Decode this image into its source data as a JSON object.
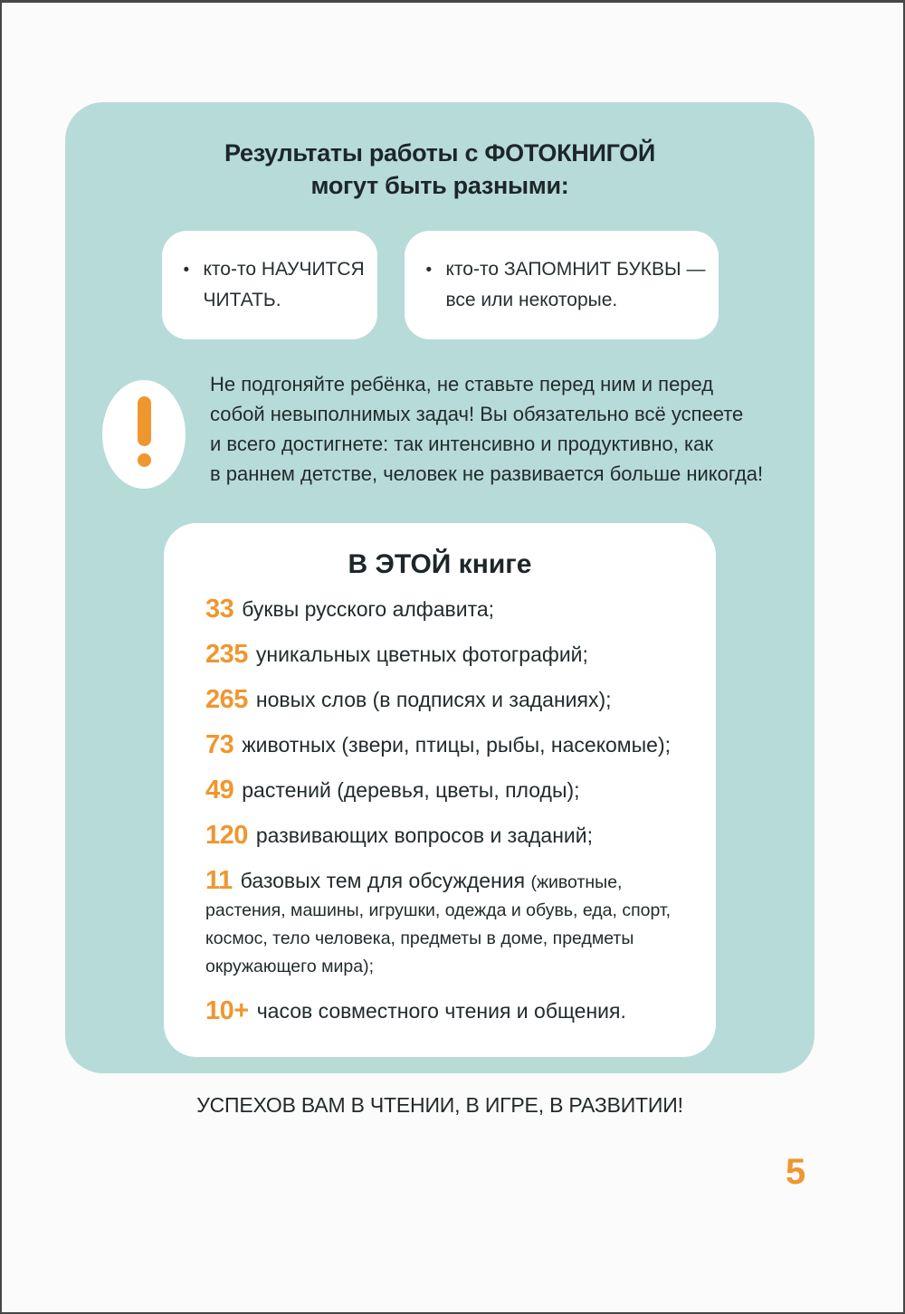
{
  "title": {
    "line1": "Результаты работы с ФОТОКНИГОЙ",
    "line2": "могут быть разными:"
  },
  "result_boxes": [
    {
      "bullet": "•",
      "line1": "кто-то НАУЧИТСЯ",
      "line2": "ЧИТАТЬ."
    },
    {
      "bullet": "•",
      "line1": "кто-то ЗАПОМНИТ БУКВЫ —",
      "line2": "все или некоторые."
    }
  ],
  "note": {
    "icon": "exclamation-icon",
    "lines": [
      "Не подгоняйте ребёнка, не ставьте перед ним и перед",
      "собой невыполнимых задач! Вы обязательно всё успеете",
      "и всего достигнете: так интенсивно и продуктивно, как",
      "в раннем детстве, человек не развивается больше никогда!"
    ]
  },
  "book_box": {
    "heading": "В ЭТОЙ книге",
    "items": [
      {
        "num": "33",
        "text": "буквы русского алфавита;"
      },
      {
        "num": "235",
        "text": "уникальных цветных фотографий;"
      },
      {
        "num": "265",
        "text": "новых слов (в подписях и заданиях);"
      },
      {
        "num": "73",
        "text": "животных (звери, птицы, рыбы, насекомые);"
      },
      {
        "num": "49",
        "text": "растений (деревья, цветы, плоды);"
      },
      {
        "num": "120",
        "text": "развивающих вопросов и заданий;"
      },
      {
        "num": "11",
        "text": "базовых тем для обсуждения ",
        "small": "(животные, растения, машины, игрушки, одежда и обувь, еда, спорт, космос, тело человека, предметы в доме, предметы окружающего мира);"
      },
      {
        "num": "10+",
        "text": "часов совместного чтения и общения."
      }
    ]
  },
  "footer": "УСПЕХОВ ВАМ В ЧТЕНИИ, В ИГРЕ, В РАЗВИТИИ!",
  "page_number": "5",
  "colors": {
    "card_bg": "#b7dbd8",
    "accent_orange": "#f0962f",
    "text_dark": "#20292b",
    "box_bg": "#ffffff"
  }
}
